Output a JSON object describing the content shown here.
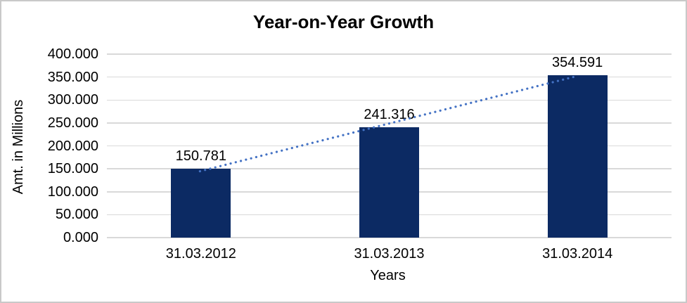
{
  "chart_data": {
    "type": "bar",
    "title": "Year-on-Year Growth",
    "xlabel": "Years",
    "ylabel": "Amt. in Millions",
    "categories": [
      "31.03.2012",
      "31.03.2013",
      "31.03.2014"
    ],
    "values": [
      150.781,
      241.316,
      354.591
    ],
    "data_labels": [
      "150.781",
      "241.316",
      "354.591"
    ],
    "ylim": [
      0,
      400
    ],
    "ytick_values": [
      0,
      50,
      100,
      150,
      200,
      250,
      300,
      350,
      400
    ],
    "ytick_labels": [
      "0.000",
      "50.000",
      "100.000",
      "150.000",
      "200.000",
      "250.000",
      "300.000",
      "350.000",
      "400.000"
    ],
    "grid": true,
    "legend": false,
    "trendline": {
      "show": true,
      "style": "dotted",
      "from_category": "31.03.2012",
      "to_category": "31.03.2014"
    },
    "colors": {
      "bar": "#0c2a63",
      "trendline": "#4472c4",
      "gridline": "#d9d9d9",
      "text": "#000000",
      "frame_border": "#c9c9c9",
      "background": "#ffffff"
    }
  }
}
